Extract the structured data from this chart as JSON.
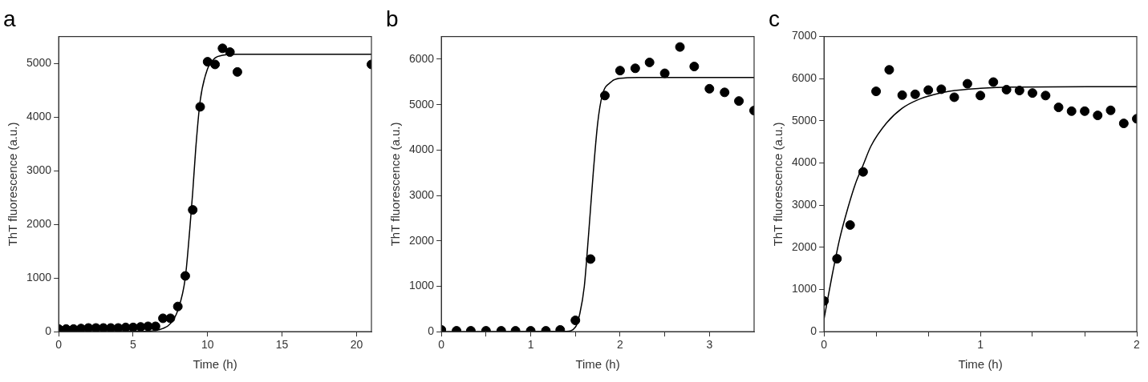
{
  "chart_data": [
    {
      "type": "scatter",
      "title": "a",
      "xlabel": "Time (h)",
      "ylabel": "ThT fluorescence (a.u.)",
      "xlim": [
        0,
        21
      ],
      "xticks": [
        0,
        5,
        10,
        15,
        20
      ],
      "ylim": [
        0,
        5500
      ],
      "yticks": [
        0,
        1000,
        2000,
        3000,
        4000,
        5000
      ],
      "grid": false,
      "legend": false,
      "series": [
        {
          "marker": "circle",
          "color": "#000000",
          "x": [
            0,
            0.5,
            1,
            1.5,
            2,
            2.5,
            3,
            3.5,
            4,
            4.5,
            5,
            5.5,
            6,
            6.5,
            7,
            7.5,
            8,
            8.5,
            9,
            9.5,
            10,
            10.5,
            11,
            11.5,
            12,
            21
          ],
          "values": [
            50,
            50,
            50,
            60,
            70,
            70,
            70,
            70,
            70,
            80,
            80,
            90,
            100,
            100,
            250,
            250,
            470,
            1040,
            2270,
            4190,
            5030,
            4980,
            5280,
            5210,
            4840,
            4980
          ]
        },
        {
          "type": "line",
          "marker": "none",
          "color": "#000000",
          "x": [
            0,
            6,
            7,
            7.5,
            8,
            8.5,
            8.8,
            9,
            9.2,
            9.5,
            10,
            10.5,
            11,
            12,
            21
          ],
          "values": [
            0,
            10,
            60,
            150,
            400,
            1000,
            1900,
            2600,
            3400,
            4300,
            4900,
            5100,
            5150,
            5170,
            5170
          ]
        }
      ]
    },
    {
      "type": "scatter",
      "title": "b",
      "xlabel": "Time (h)",
      "ylabel": "ThT fluorescence (a.u.)",
      "xlim": [
        0,
        3.5
      ],
      "xticks": [
        0,
        {
          "value": 0.5,
          "label": null
        },
        1,
        {
          "value": 1.5,
          "label": null
        },
        2,
        {
          "value": 2.5,
          "label": null
        },
        3
      ],
      "ylim": [
        0,
        6500
      ],
      "yticks": [
        0,
        1000,
        2000,
        3000,
        4000,
        5000,
        6000
      ],
      "grid": false,
      "legend": false,
      "series": [
        {
          "marker": "circle",
          "color": "#000000",
          "x": [
            0,
            0.17,
            0.33,
            0.5,
            0.67,
            0.83,
            1,
            1.17,
            1.33,
            1.5,
            1.67,
            1.83,
            2,
            2.17,
            2.33,
            2.5,
            2.67,
            2.83,
            3,
            3.17,
            3.33,
            3.5
          ],
          "values": [
            40,
            20,
            20,
            20,
            20,
            20,
            20,
            20,
            40,
            250,
            1600,
            5200,
            5750,
            5800,
            5930,
            5690,
            6270,
            5840,
            5350,
            5270,
            5080,
            4870
          ]
        },
        {
          "type": "line",
          "marker": "none",
          "color": "#000000",
          "x": [
            0,
            1.4,
            1.5,
            1.55,
            1.6,
            1.65,
            1.7,
            1.75,
            1.8,
            1.9,
            2,
            2.2,
            3.5
          ],
          "values": [
            0,
            10,
            100,
            400,
            1000,
            2200,
            3500,
            4600,
            5200,
            5500,
            5580,
            5600,
            5600
          ]
        }
      ]
    },
    {
      "type": "scatter",
      "title": "c",
      "xlabel": "Time (h)",
      "ylabel": "ThT fluorescence (a.u.)",
      "xlim": [
        0,
        2
      ],
      "xticks": [
        0,
        {
          "value": 0.333,
          "label": null
        },
        {
          "value": 0.667,
          "label": null
        },
        1,
        {
          "value": 1.333,
          "label": null
        },
        {
          "value": 1.667,
          "label": null
        },
        2
      ],
      "ylim": [
        0,
        7000
      ],
      "yticks": [
        0,
        1000,
        2000,
        3000,
        4000,
        5000,
        6000,
        7000
      ],
      "grid": false,
      "legend": false,
      "series": [
        {
          "marker": "circle",
          "color": "#000000",
          "x": [
            0,
            0.083,
            0.167,
            0.25,
            0.333,
            0.417,
            0.5,
            0.583,
            0.667,
            0.75,
            0.833,
            0.917,
            1,
            1.083,
            1.167,
            1.25,
            1.333,
            1.417,
            1.5,
            1.583,
            1.667,
            1.75,
            1.833,
            1.917,
            2
          ],
          "values": [
            730,
            1730,
            2530,
            3790,
            5700,
            6210,
            5610,
            5630,
            5730,
            5750,
            5560,
            5880,
            5600,
            5920,
            5740,
            5720,
            5660,
            5600,
            5320,
            5230,
            5230,
            5130,
            5250,
            4940,
            5050
          ]
        },
        {
          "type": "line",
          "marker": "none",
          "color": "#000000",
          "x": [
            0,
            0.05,
            0.1,
            0.15,
            0.2,
            0.25,
            0.3,
            0.4,
            0.5,
            0.6,
            0.7,
            0.8,
            1,
            1.2,
            2
          ],
          "values": [
            300,
            1300,
            2200,
            2900,
            3500,
            3950,
            4400,
            4950,
            5300,
            5500,
            5620,
            5700,
            5770,
            5800,
            5810
          ]
        }
      ]
    }
  ]
}
